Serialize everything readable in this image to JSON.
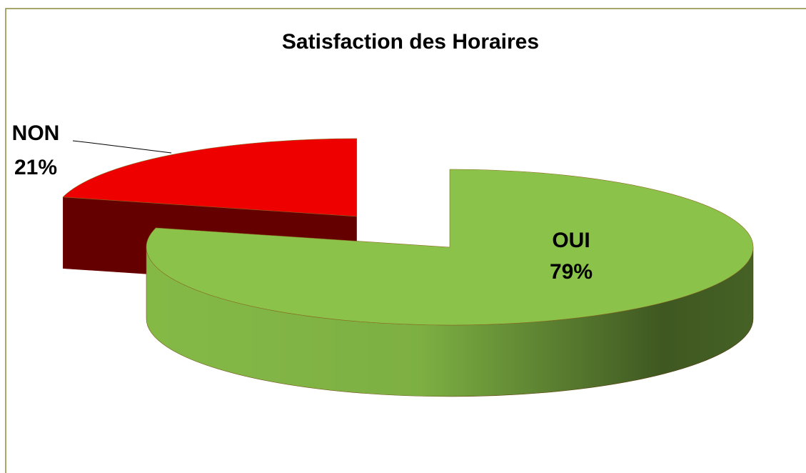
{
  "chart_data": {
    "type": "pie",
    "title": "Satisfaction des Horaires",
    "categories": [
      "OUI",
      "NON"
    ],
    "values": [
      79,
      21
    ],
    "value_labels": [
      "79%",
      "21%"
    ],
    "colors": [
      "#8bc34a",
      "#ee0000"
    ]
  }
}
